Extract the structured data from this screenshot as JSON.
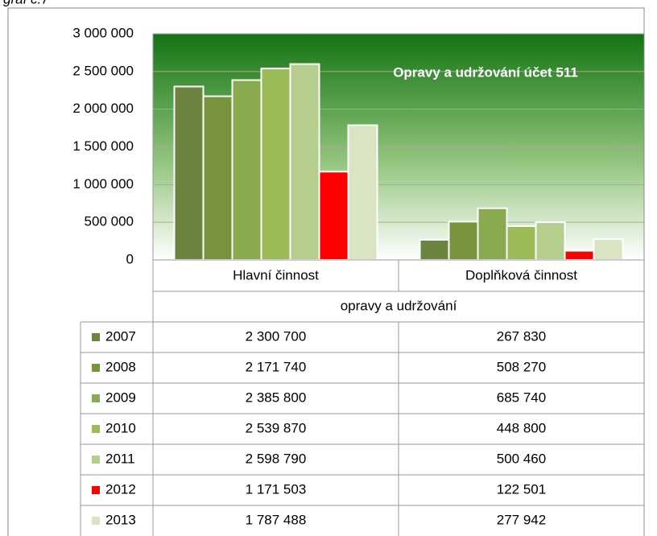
{
  "caption": "graf č.7",
  "chart_data": {
    "type": "bar",
    "title": "Opravy a udržování  účet 511",
    "x_label": "opravy a udržování",
    "categories": [
      "Hlavní činnost",
      "Doplňková činnost"
    ],
    "ylim": [
      0,
      3000000
    ],
    "yticks": [
      0,
      {
        "value": 500000,
        "label": "500 000"
      },
      {
        "value": 1000000,
        "label": "1 000 000"
      },
      {
        "value": 1500000,
        "label": "1 500 000"
      },
      {
        "value": 2000000,
        "label": "2 000 000"
      },
      {
        "value": 2500000,
        "label": "2 500 000"
      },
      {
        "value": 3000000,
        "label": "3 000 000"
      }
    ],
    "grid": true,
    "series": [
      {
        "name": "2007",
        "color": "#6b8540",
        "values": [
          2300700,
          267830
        ],
        "value_labels": [
          "2 300 700",
          "267 830"
        ]
      },
      {
        "name": "2008",
        "color": "#77933c",
        "values": [
          2171740,
          508270
        ],
        "value_labels": [
          "2 171 740",
          "508 270"
        ]
      },
      {
        "name": "2009",
        "color": "#8aaa50",
        "values": [
          2385800,
          685740
        ],
        "value_labels": [
          "2 385 800",
          "685 740"
        ]
      },
      {
        "name": "2010",
        "color": "#9bbb59",
        "values": [
          2539870,
          448800
        ],
        "value_labels": [
          "2 539 870",
          "448 800"
        ]
      },
      {
        "name": "2011",
        "color": "#b5cd8d",
        "values": [
          2598790,
          500460
        ],
        "value_labels": [
          "2 598 790",
          "500 460"
        ]
      },
      {
        "name": "2012",
        "color": "#ff0000",
        "values": [
          1171503,
          122501
        ],
        "value_labels": [
          "1 171 503",
          "122 501"
        ]
      },
      {
        "name": "2013",
        "color": "#d8e4c2",
        "values": [
          1787488,
          277942
        ],
        "value_labels": [
          "1 787 488",
          "277 942"
        ]
      }
    ]
  }
}
